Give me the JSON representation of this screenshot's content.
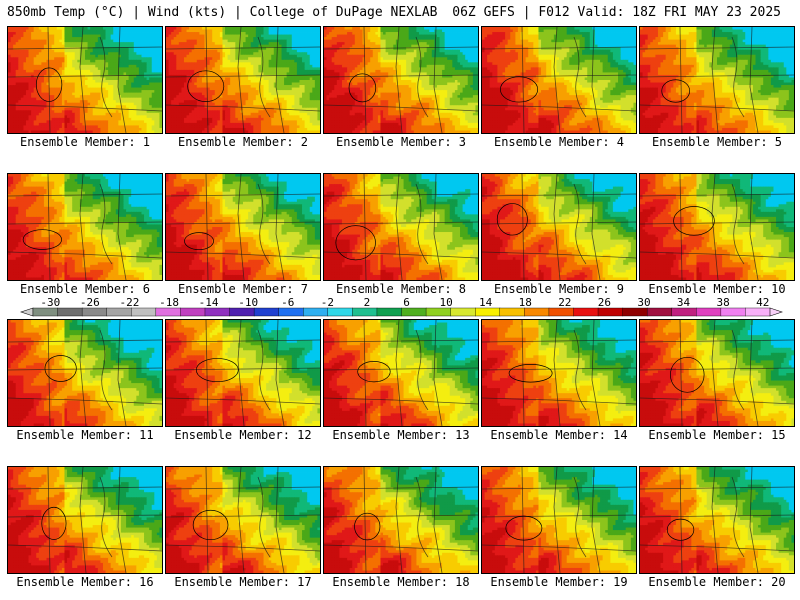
{
  "header": {
    "left_title": "850mb Temp (°C) | Wind (kts) | College of DuPage NEXLAB",
    "right_title": "06Z GEFS | F012 Valid: 18Z FRI MAY 23 2025"
  },
  "panels": [
    {
      "label": "Ensemble Member: 1"
    },
    {
      "label": "Ensemble Member: 2"
    },
    {
      "label": "Ensemble Member: 3"
    },
    {
      "label": "Ensemble Member: 4"
    },
    {
      "label": "Ensemble Member: 5"
    },
    {
      "label": "Ensemble Member: 6"
    },
    {
      "label": "Ensemble Member: 7"
    },
    {
      "label": "Ensemble Member: 8"
    },
    {
      "label": "Ensemble Member: 9"
    },
    {
      "label": "Ensemble Member: 10"
    },
    {
      "label": "Ensemble Member: 11"
    },
    {
      "label": "Ensemble Member: 12"
    },
    {
      "label": "Ensemble Member: 13"
    },
    {
      "label": "Ensemble Member: 14"
    },
    {
      "label": "Ensemble Member: 15"
    },
    {
      "label": "Ensemble Member: 16"
    },
    {
      "label": "Ensemble Member: 17"
    },
    {
      "label": "Ensemble Member: 18"
    },
    {
      "label": "Ensemble Member: 19"
    },
    {
      "label": "Ensemble Member: 20"
    }
  ],
  "colorbar": {
    "ticks": [
      "-30",
      "-26",
      "-22",
      "-18",
      "-14",
      "-10",
      "-6",
      "-2",
      "2",
      "6",
      "10",
      "14",
      "18",
      "22",
      "26",
      "30",
      "34",
      "38",
      "42"
    ],
    "colors": [
      "#7f8f80",
      "#6f6f6f",
      "#8a8a8a",
      "#a5a5a5",
      "#c0c0c0",
      "#e070e0",
      "#c040c0",
      "#9030c0",
      "#5020b0",
      "#2040d0",
      "#2070f0",
      "#30b0f0",
      "#30d8e8",
      "#20c090",
      "#10a050",
      "#50b020",
      "#90d020",
      "#d8e830",
      "#f8f000",
      "#f8c000",
      "#f88800",
      "#f05000",
      "#e81010",
      "#c00000",
      "#900000",
      "#a01040",
      "#c02080",
      "#e040c0",
      "#f080f0",
      "#f8b0f8"
    ],
    "value_colors": [
      {
        "v": 2,
        "c": "#00c8f0"
      },
      {
        "v": 6,
        "c": "#10b878"
      },
      {
        "v": 8,
        "c": "#109a48"
      },
      {
        "v": 10,
        "c": "#4aa818"
      },
      {
        "v": 12,
        "c": "#8cc41c"
      },
      {
        "v": 14,
        "c": "#d2e02c"
      },
      {
        "v": 16,
        "c": "#f4ee10"
      },
      {
        "v": 18,
        "c": "#f8cc00"
      },
      {
        "v": 20,
        "c": "#f8a000"
      },
      {
        "v": 22,
        "c": "#f47000"
      },
      {
        "v": 24,
        "c": "#ee4010"
      },
      {
        "v": 26,
        "c": "#e01818"
      },
      {
        "v": 28,
        "c": "#c80c0c"
      }
    ]
  }
}
